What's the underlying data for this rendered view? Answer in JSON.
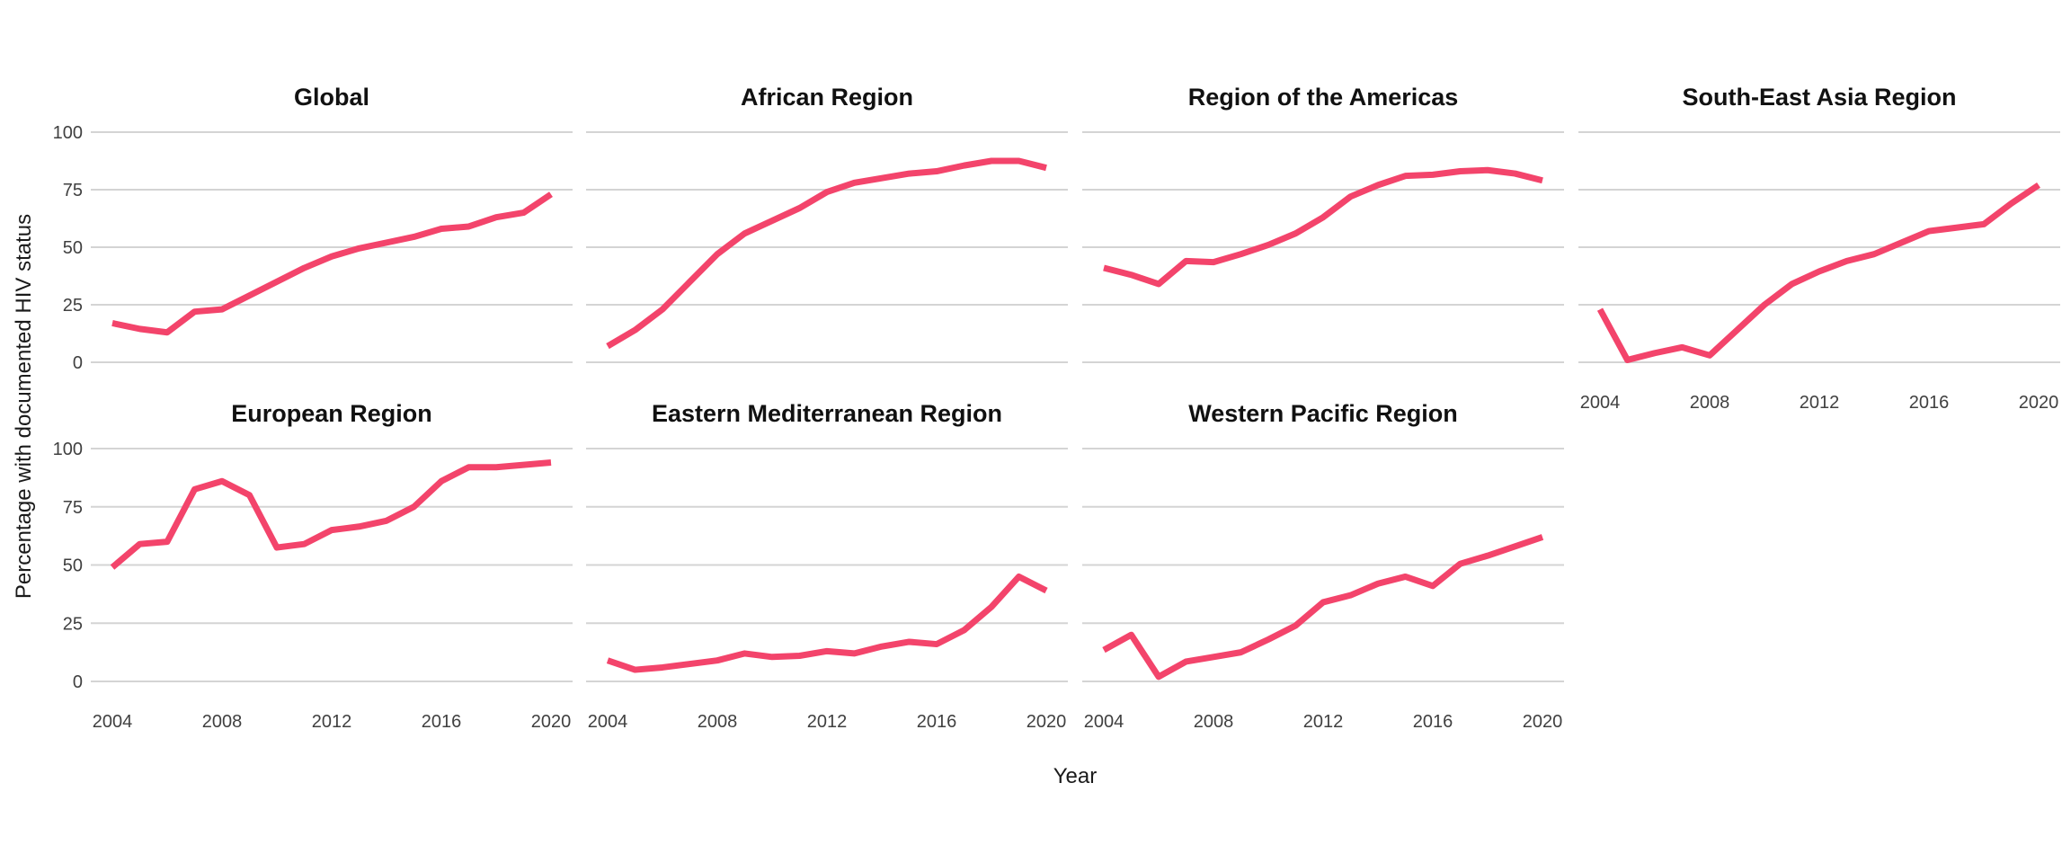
{
  "chart_data": {
    "type": "line",
    "xlabel": "Year",
    "ylabel": "Percentage with documented HIV status",
    "x": [
      2004,
      2005,
      2006,
      2007,
      2008,
      2009,
      2010,
      2011,
      2012,
      2013,
      2014,
      2015,
      2016,
      2017,
      2018,
      2019,
      2020
    ],
    "x_tick_labels": [
      "2004",
      "2008",
      "2012",
      "2016",
      "2020"
    ],
    "y_ticks": [
      "0",
      "25",
      "50",
      "75",
      "100"
    ],
    "ylim": [
      0,
      100
    ],
    "grid": true,
    "legend_position": "none",
    "line_color": "#F3446B",
    "grid_color": "#D4D4D4",
    "facets": [
      {
        "name": "Global",
        "values": [
          17,
          14.5,
          13,
          22,
          23,
          29,
          35,
          41,
          46,
          49.5,
          52,
          54.5,
          58,
          59,
          63,
          65,
          73
        ]
      },
      {
        "name": "African Region",
        "values": [
          7,
          14,
          23,
          35,
          47,
          56,
          61.5,
          67,
          74,
          78,
          80,
          82,
          83,
          85.5,
          87.5,
          87.5,
          84.5
        ]
      },
      {
        "name": "Region of the Americas",
        "values": [
          41,
          38,
          34,
          44,
          43.5,
          47,
          51,
          56,
          63,
          72,
          77,
          81,
          81.5,
          83,
          83.5,
          82,
          79
        ]
      },
      {
        "name": "South-East Asia Region",
        "values": [
          23,
          1,
          4,
          6.5,
          3,
          14,
          25,
          34,
          39.5,
          44,
          47,
          52,
          57,
          58.5,
          60,
          69,
          77
        ]
      },
      {
        "name": "European Region",
        "values": [
          49,
          59,
          60,
          82.5,
          86,
          80,
          57.5,
          59,
          65,
          66.5,
          69,
          75,
          86,
          92,
          92,
          93,
          94
        ]
      },
      {
        "name": "Eastern Mediterranean Region",
        "values": [
          9,
          5,
          6,
          7.5,
          9,
          12,
          10.5,
          11,
          13,
          12,
          15,
          17,
          16,
          22,
          32,
          45,
          39
        ]
      },
      {
        "name": "Western Pacific Region",
        "values": [
          13.5,
          20,
          2,
          8.5,
          10.5,
          12.5,
          18,
          24,
          34,
          37,
          42,
          45,
          41,
          50.5,
          54,
          58,
          62
        ]
      }
    ]
  }
}
